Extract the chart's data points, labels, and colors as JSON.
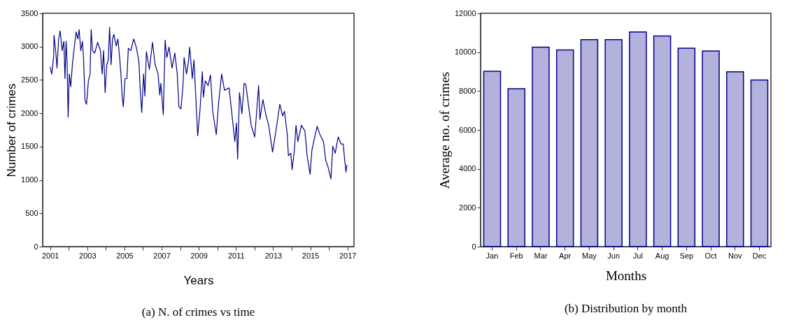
{
  "chart_data": [
    {
      "type": "line",
      "title": "(a) N. of crimes vs time",
      "xlabel": "Years",
      "ylabel": "Number of crimes",
      "xlim": [
        2000.6,
        2017.35
      ],
      "ylim": [
        0,
        3500
      ],
      "xticks": [
        2001,
        {
          "value": 2002,
          "label": null
        },
        2003,
        {
          "value": 2004,
          "label": null
        },
        2005,
        {
          "value": 2006,
          "label": null
        },
        2007,
        {
          "value": 2008,
          "label": null
        },
        2009,
        {
          "value": 2010,
          "label": null
        },
        2011,
        {
          "value": 2012,
          "label": null
        },
        2013,
        {
          "value": 2014,
          "label": null
        },
        2015,
        {
          "value": 2016,
          "label": null
        },
        2017
      ],
      "yticks": [
        0,
        500,
        1000,
        1500,
        2000,
        2500,
        3000,
        3500
      ],
      "grid": false,
      "series": [
        {
          "color": "#00008b",
          "x": [
            2001.0,
            2001.09,
            2001.19,
            2001.21,
            2001.31,
            2001.37,
            2001.46,
            2001.54,
            2001.65,
            2001.74,
            2001.8,
            2001.86,
            2001.91,
            2001.97,
            2002.03,
            2002.11,
            2002.21,
            2002.31,
            2002.4,
            2002.49,
            2002.56,
            2002.65,
            2002.74,
            2002.8,
            2002.88,
            2002.96,
            2003.06,
            2003.15,
            2003.21,
            2003.28,
            2003.4,
            2003.56,
            2003.71,
            2003.8,
            2003.88,
            2003.96,
            2004.05,
            2004.13,
            2004.2,
            2004.28,
            2004.36,
            2004.43,
            2004.56,
            2004.65,
            2004.74,
            2004.81,
            2004.88,
            2004.94,
            2005.03,
            2005.13,
            2005.21,
            2005.34,
            2005.5,
            2005.65,
            2005.78,
            2005.84,
            2005.93,
            2006.03,
            2006.1,
            2006.18,
            2006.34,
            2006.51,
            2006.65,
            2006.81,
            2006.9,
            2006.96,
            2007.09,
            2007.19,
            2007.28,
            2007.4,
            2007.56,
            2007.71,
            2007.84,
            2007.93,
            2008.04,
            2008.15,
            2008.21,
            2008.34,
            2008.44,
            2008.51,
            2008.65,
            2008.74,
            2008.84,
            2008.94,
            2009.06,
            2009.19,
            2009.25,
            2009.35,
            2009.5,
            2009.63,
            2009.75,
            2009.94,
            2010.07,
            2010.23,
            2010.38,
            2010.63,
            2010.82,
            2010.94,
            2011.03,
            2011.09,
            2011.19,
            2011.32,
            2011.44,
            2011.53,
            2011.7,
            2011.82,
            2012.01,
            2012.22,
            2012.29,
            2012.45,
            2012.61,
            2012.76,
            2012.97,
            2013.14,
            2013.36,
            2013.51,
            2013.61,
            2013.76,
            2013.82,
            2013.95,
            2014.02,
            2014.14,
            2014.23,
            2014.33,
            2014.52,
            2014.71,
            2014.83,
            2014.99,
            2015.08,
            2015.21,
            2015.37,
            2015.52,
            2015.71,
            2015.83,
            2015.96,
            2016.11,
            2016.21,
            2016.34,
            2016.5,
            2016.65,
            2016.77,
            2016.84,
            2016.92,
            2016.97
          ],
          "values": [
            2695,
            2590,
            2852,
            3168,
            2905,
            2678,
            3115,
            3238,
            2940,
            3080,
            2520,
            3080,
            2800,
            1943,
            2590,
            2398,
            2765,
            3010,
            3220,
            3115,
            3255,
            2940,
            3080,
            2818,
            2188,
            2135,
            2485,
            2590,
            3255,
            2940,
            2905,
            3063,
            2940,
            2590,
            2940,
            2310,
            2730,
            2800,
            3290,
            2730,
            3115,
            3185,
            3010,
            3115,
            2835,
            2590,
            2240,
            2100,
            2520,
            2520,
            2975,
            2940,
            3115,
            2975,
            2765,
            2398,
            2013,
            2590,
            2258,
            2923,
            2660,
            3063,
            2730,
            2590,
            2275,
            2450,
            1978,
            3098,
            2835,
            2993,
            2678,
            2905,
            2590,
            2100,
            2065,
            2415,
            2835,
            2590,
            2765,
            2993,
            2520,
            2800,
            2240,
            1663,
            2030,
            2625,
            2240,
            2485,
            2415,
            2573,
            2030,
            1680,
            2170,
            2590,
            2345,
            2380,
            1890,
            1575,
            1855,
            1313,
            2310,
            1995,
            2450,
            2433,
            2065,
            1820,
            1645,
            2415,
            1908,
            2205,
            1978,
            1820,
            1418,
            1715,
            2135,
            1960,
            2030,
            1680,
            1365,
            1400,
            1155,
            1435,
            1820,
            1575,
            1820,
            1733,
            1365,
            1085,
            1435,
            1610,
            1803,
            1680,
            1575,
            1295,
            1190,
            1015,
            1505,
            1400,
            1645,
            1540,
            1540,
            1330,
            1120,
            1225
          ]
        }
      ]
    },
    {
      "type": "bar",
      "title": "(b) Distribution by month",
      "xlabel": "Months",
      "ylabel": "Average no. of crimes",
      "categories": [
        "Jan",
        "Feb",
        "Mar",
        "Apr",
        "May",
        "Jun",
        "Jul",
        "Aug",
        "Sep",
        "Oct",
        "Nov",
        "Dec"
      ],
      "values": [
        9020,
        8120,
        10260,
        10110,
        10640,
        10640,
        11040,
        10830,
        10200,
        10060,
        8990,
        8570
      ],
      "color": "#00008b",
      "ylim": [
        0,
        12000
      ],
      "yticks": [
        0,
        2000,
        4000,
        6000,
        8000,
        10000,
        12000
      ],
      "grid": false
    }
  ]
}
